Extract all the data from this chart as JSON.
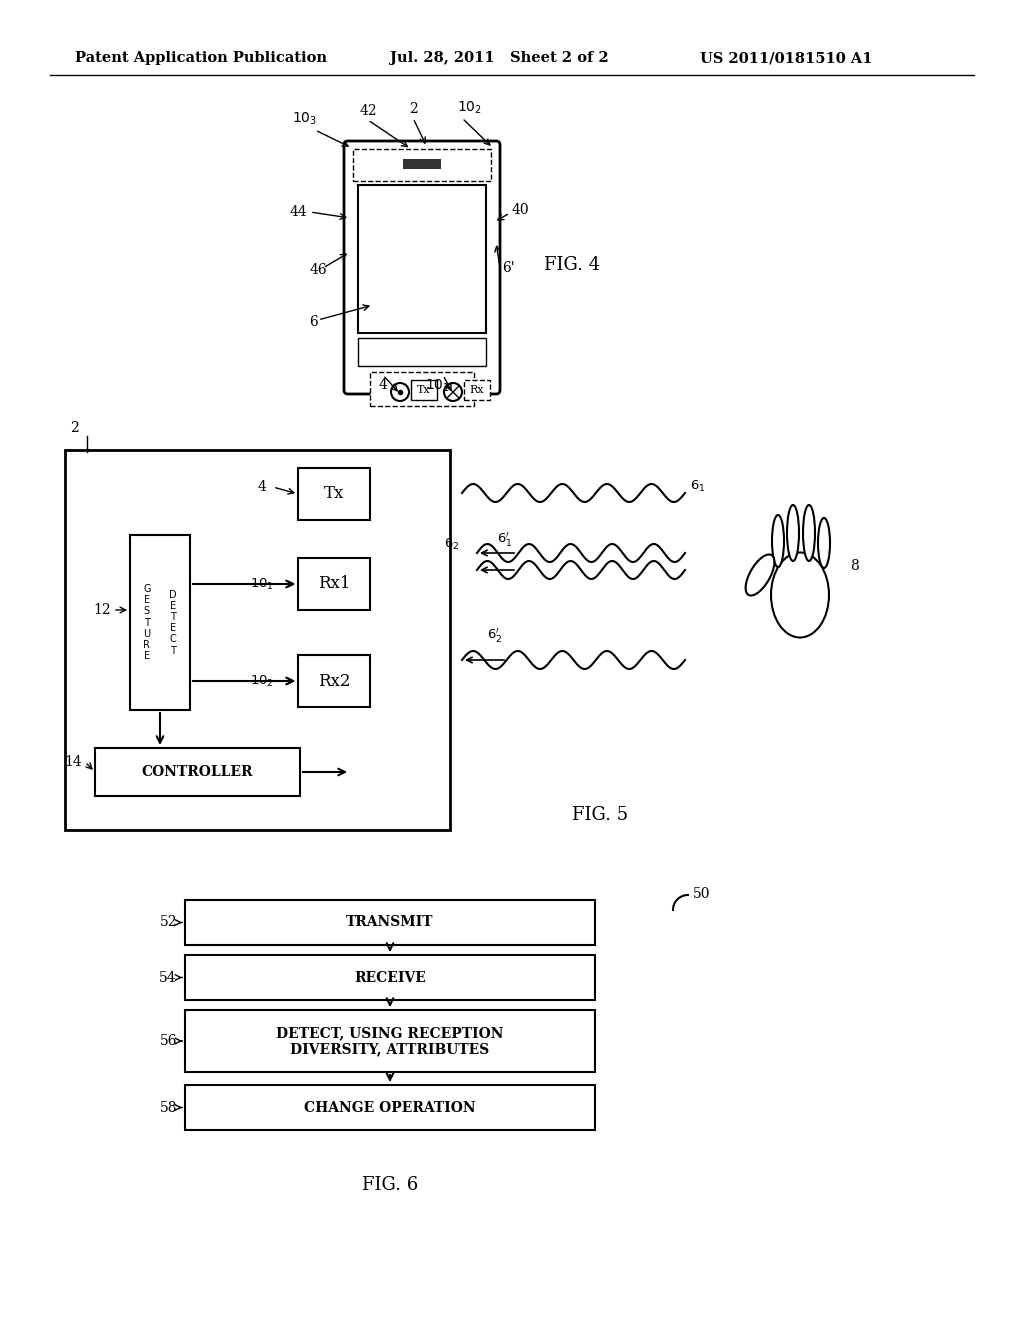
{
  "bg_color": "#ffffff",
  "header_left": "Patent Application Publication",
  "header_mid": "Jul. 28, 2011   Sheet 2 of 2",
  "header_right": "US 2011/0181510 A1",
  "fig4_label": "FIG. 4",
  "fig5_label": "FIG. 5",
  "fig6_label": "FIG. 6",
  "line_color": "#000000"
}
